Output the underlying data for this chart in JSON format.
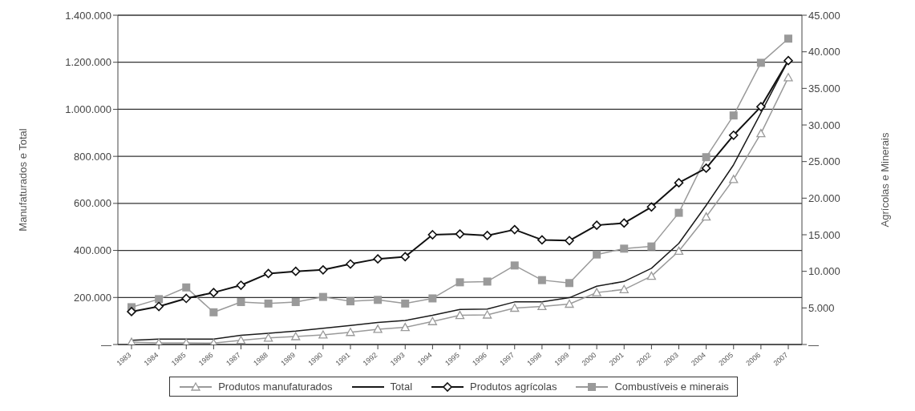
{
  "chart_data": {
    "type": "line",
    "ylabel": "Manufaturados e Total",
    "y2label": "Agrícolas e Minerais",
    "categories": [
      "1983",
      "1984",
      "1985",
      "1986",
      "1987",
      "1988",
      "1989",
      "1990",
      "1991",
      "1992",
      "1993",
      "1994",
      "1995",
      "1996",
      "1997",
      "1998",
      "1999",
      "2000",
      "2001",
      "2002",
      "2003",
      "2004",
      "2005",
      "2006",
      "2007"
    ],
    "series": [
      {
        "name": "Produtos manufaturados",
        "color": "#9a9a9a",
        "marker": "triangle",
        "values": [
          10000,
          7000,
          7000,
          6000,
          18000,
          28000,
          34000,
          41000,
          52000,
          65000,
          73000,
          98000,
          124000,
          126000,
          155000,
          162000,
          172000,
          221000,
          234000,
          291000,
          397000,
          543000,
          702000,
          897000,
          1135000
        ]
      },
      {
        "name": "Total",
        "color": "#1a1a1a",
        "marker": "none",
        "values": [
          18000,
          23000,
          23000,
          23000,
          39000,
          48000,
          57000,
          69000,
          81000,
          94000,
          102000,
          124000,
          149000,
          151000,
          181000,
          181000,
          199000,
          248000,
          268000,
          324000,
          430000,
          592000,
          764000,
          985000,
          1208000
        ]
      },
      {
        "name": "Produtos agrícolas",
        "color": "#111111",
        "marker": "diamond",
        "axis": "y2",
        "values": [
          4500,
          5200,
          6300,
          7100,
          8100,
          9700,
          10000,
          10200,
          11000,
          11700,
          12000,
          15000,
          15100,
          14900,
          15700,
          14300,
          14200,
          16300,
          16600,
          18800,
          22100,
          24100,
          28600,
          32500,
          38800
        ]
      },
      {
        "name": "Combustíveis e minerais",
        "color": "#9a9a9a",
        "marker": "square",
        "axis": "y2",
        "values": [
          5100,
          6200,
          7800,
          4400,
          5800,
          5600,
          5800,
          6500,
          5900,
          6100,
          5600,
          6300,
          8500,
          8600,
          10800,
          8800,
          8400,
          12300,
          13100,
          13400,
          18000,
          25600,
          31300,
          38500,
          41800
        ]
      }
    ],
    "ylim": [
      0,
      1400000
    ],
    "yticks": [
      {
        "value": 0,
        "label": "—"
      },
      {
        "value": 200000,
        "label": "200.000"
      },
      {
        "value": 400000,
        "label": "400.000"
      },
      {
        "value": 600000,
        "label": "600.000"
      },
      {
        "value": 800000,
        "label": "800.000"
      },
      {
        "value": 1000000,
        "label": "1.000.000"
      },
      {
        "value": 1200000,
        "label": "1.200.000"
      },
      {
        "value": 1400000,
        "label": "1.400.000"
      }
    ],
    "y2lim": [
      0,
      45000
    ],
    "y2ticks": [
      {
        "value": 0,
        "label": "—"
      },
      {
        "value": 5000,
        "label": "5.000"
      },
      {
        "value": 10000,
        "label": "10.000"
      },
      {
        "value": 15000,
        "label": "15.000"
      },
      {
        "value": 20000,
        "label": "20.000"
      },
      {
        "value": 25000,
        "label": "25.000"
      },
      {
        "value": 30000,
        "label": "30.000"
      },
      {
        "value": 35000,
        "label": "35.000"
      },
      {
        "value": 40000,
        "label": "40.000"
      },
      {
        "value": 45000,
        "label": "45.000"
      }
    ],
    "grid": "y",
    "legend": "bottom"
  }
}
